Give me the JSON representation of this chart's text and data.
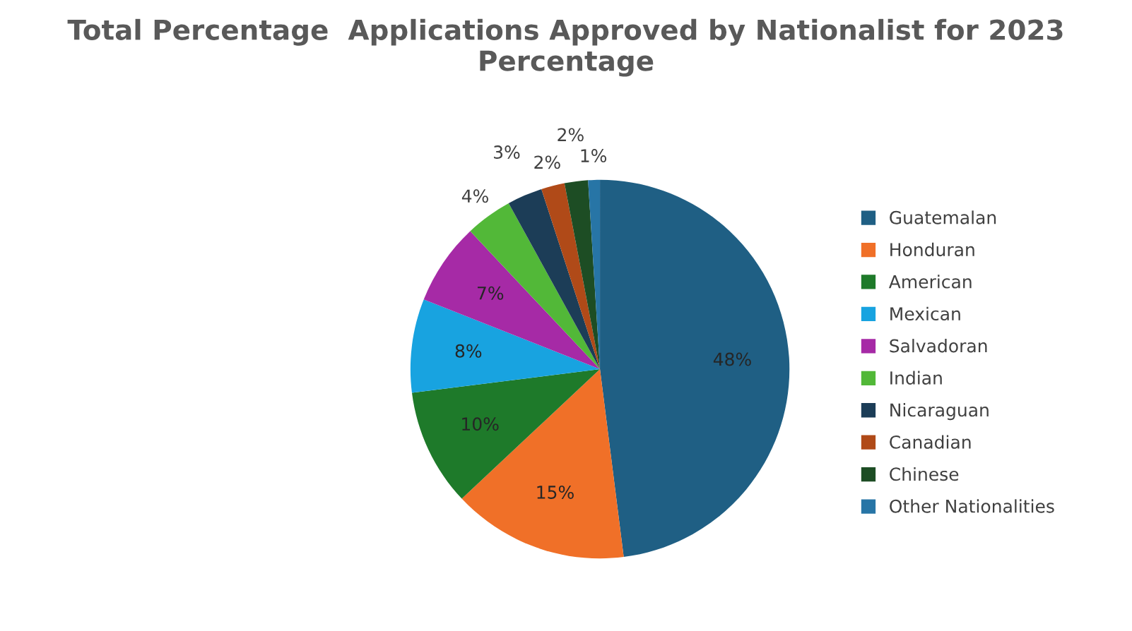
{
  "chart_data": {
    "type": "pie",
    "title": "Total Percentage  Applications Approved by Nationalist for 2023 Percentage",
    "categories": [
      "Guatemalan",
      "Honduran",
      "American",
      "Mexican",
      "Salvadoran",
      "Indian",
      "Nicaraguan",
      "Canadian",
      "Chinese",
      "Other Nationalities"
    ],
    "values": [
      48,
      15,
      10,
      8,
      7,
      4,
      3,
      2,
      2,
      1
    ],
    "value_labels": [
      "48%",
      "15%",
      "10%",
      "8%",
      "7%",
      "4%",
      "3%",
      "2%",
      "2%",
      "1%"
    ],
    "colors": [
      "#1f5f84",
      "#f07028",
      "#1e7a2a",
      "#18a3e0",
      "#a62aa6",
      "#52b838",
      "#1c3d57",
      "#b04a18",
      "#1d4d24",
      "#2775a6"
    ],
    "legend": "right"
  }
}
